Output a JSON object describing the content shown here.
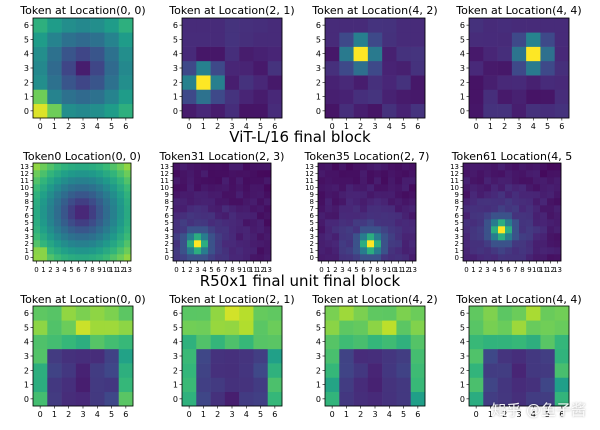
{
  "chart_data": [
    {
      "type": "heatmap",
      "title": "",
      "cmap": "viridis",
      "panels": [
        {
          "title": "Token at Location(0, 0)",
          "size": 7,
          "query": [
            0,
            0
          ],
          "kind": "ring",
          "xticks": [
            "0",
            "1",
            "2",
            "3",
            "4",
            "5",
            "6"
          ],
          "yticks": [
            "0",
            "1",
            "2",
            "3",
            "4",
            "5",
            "6"
          ]
        },
        {
          "title": "Token at Location(2, 1)",
          "size": 7,
          "query": [
            1,
            2
          ],
          "kind": "peak",
          "xticks": [
            "0",
            "1",
            "2",
            "3",
            "4",
            "5",
            "6"
          ],
          "yticks": [
            "0",
            "1",
            "2",
            "3",
            "4",
            "5",
            "6"
          ]
        },
        {
          "title": "Token at Location(4, 2)",
          "size": 7,
          "query": [
            2,
            4
          ],
          "kind": "peak",
          "xticks": [
            "0",
            "1",
            "2",
            "3",
            "4",
            "5",
            "6"
          ],
          "yticks": [
            "0",
            "1",
            "2",
            "3",
            "4",
            "5",
            "6"
          ]
        },
        {
          "title": "Token at Location(4, 4)",
          "size": 7,
          "query": [
            4,
            4
          ],
          "kind": "peak",
          "xticks": [
            "0",
            "1",
            "2",
            "3",
            "4",
            "5",
            "6"
          ],
          "yticks": [
            "0",
            "1",
            "2",
            "3",
            "4",
            "5",
            "6"
          ]
        }
      ]
    },
    {
      "type": "heatmap",
      "title": "ViT-L/16 final block",
      "cmap": "viridis",
      "panels": [
        {
          "title": "Token0 Location(0, 0)",
          "size": 14,
          "query": [
            0,
            0
          ],
          "kind": "ring",
          "xticks": [
            "0",
            "1",
            "2",
            "3",
            "4",
            "5",
            "6",
            "7",
            "8",
            "9",
            "10",
            "11",
            "12",
            "13"
          ],
          "yticks": [
            "0",
            "1",
            "2",
            "3",
            "4",
            "5",
            "6",
            "7",
            "8",
            "9",
            "10",
            "11",
            "12",
            "13"
          ]
        },
        {
          "title": "Token31 Location(2, 3)",
          "size": 14,
          "query": [
            3,
            2
          ],
          "kind": "peak",
          "xticks": [
            "0",
            "1",
            "2",
            "3",
            "4",
            "5",
            "6",
            "7",
            "8",
            "9",
            "10",
            "11",
            "12",
            "13"
          ],
          "yticks": [
            "0",
            "1",
            "2",
            "3",
            "4",
            "5",
            "6",
            "7",
            "8",
            "9",
            "10",
            "11",
            "12",
            "13"
          ]
        },
        {
          "title": "Token35 Location(2, 7)",
          "size": 14,
          "query": [
            7,
            2
          ],
          "kind": "peak",
          "xticks": [
            "0",
            "1",
            "2",
            "3",
            "4",
            "5",
            "6",
            "7",
            "8",
            "9",
            "10",
            "11",
            "12",
            "13"
          ],
          "yticks": [
            "0",
            "1",
            "2",
            "3",
            "4",
            "5",
            "6",
            "7",
            "8",
            "9",
            "10",
            "11",
            "12",
            "13"
          ]
        },
        {
          "title": "Token61 Location(4, 5",
          "size": 14,
          "query": [
            5,
            4
          ],
          "kind": "peak",
          "xticks": [
            "0",
            "1",
            "2",
            "3",
            "4",
            "5",
            "6",
            "7",
            "8",
            "9",
            "10",
            "11",
            "12",
            "13"
          ],
          "yticks": [
            "0",
            "1",
            "2",
            "3",
            "4",
            "5",
            "6",
            "7",
            "8",
            "9",
            "10",
            "11",
            "12",
            "13"
          ]
        }
      ]
    },
    {
      "type": "heatmap",
      "title": "R50x1 final unit final block",
      "cmap": "viridis",
      "panels": [
        {
          "title": "Token at Location(0, 0)",
          "size": 7,
          "query": [
            0,
            0
          ],
          "kind": "bowl",
          "xticks": [
            "0",
            "1",
            "2",
            "3",
            "4",
            "5",
            "6"
          ],
          "yticks": [
            "0",
            "1",
            "2",
            "3",
            "4",
            "5",
            "6"
          ]
        },
        {
          "title": "Token at Location(2, 1)",
          "size": 7,
          "query": [
            1,
            2
          ],
          "kind": "bowl",
          "xticks": [
            "0",
            "1",
            "2",
            "3",
            "4",
            "5",
            "6"
          ],
          "yticks": [
            "0",
            "1",
            "2",
            "3",
            "4",
            "5",
            "6"
          ]
        },
        {
          "title": "Token at Location(4, 2)",
          "size": 7,
          "query": [
            2,
            4
          ],
          "kind": "bowl",
          "xticks": [
            "0",
            "1",
            "2",
            "3",
            "4",
            "5",
            "6"
          ],
          "yticks": [
            "0",
            "1",
            "2",
            "3",
            "4",
            "5",
            "6"
          ]
        },
        {
          "title": "Token at Location(4, 4)",
          "size": 7,
          "query": [
            4,
            4
          ],
          "kind": "bowl",
          "xticks": [
            "0",
            "1",
            "2",
            "3",
            "4",
            "5",
            "6"
          ],
          "yticks": [
            "0",
            "1",
            "2",
            "3",
            "4",
            "5",
            "6"
          ]
        }
      ]
    }
  ],
  "watermark": "知乎 @鱼子酱"
}
